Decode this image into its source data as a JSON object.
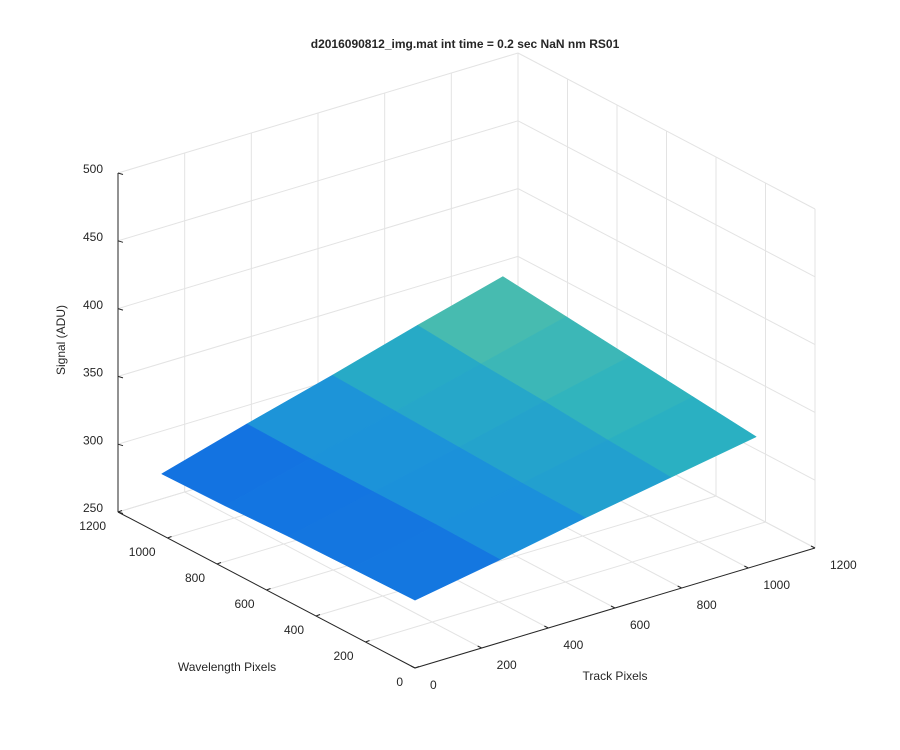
{
  "chart_data": {
    "type": "surface",
    "title": "d2016090812_img.mat int time = 0.2 sec  NaN nm RS01",
    "xlabel": "Track Pixels",
    "ylabel": "Wavelength Pixels",
    "zlabel": "Signal (ADU)",
    "xlim": [
      0,
      1200
    ],
    "ylim": [
      0,
      1200
    ],
    "zlim": [
      250,
      500
    ],
    "xticks": [
      0,
      200,
      400,
      600,
      800,
      1000,
      1200
    ],
    "yticks": [
      0,
      200,
      400,
      600,
      800,
      1000,
      1200
    ],
    "zticks": [
      250,
      300,
      350,
      400,
      450,
      500
    ],
    "x": [
      0,
      256,
      512,
      768,
      1024
    ],
    "y": [
      0,
      256,
      512,
      768,
      1024
    ],
    "z": [
      [
        300,
        311,
        323,
        334,
        345
      ],
      [
        299,
        312,
        324,
        337,
        350
      ],
      [
        298,
        312,
        326,
        341,
        355
      ],
      [
        296,
        312,
        328,
        344,
        360
      ],
      [
        295,
        313,
        330,
        348,
        365
      ]
    ],
    "colormap": [
      "#0b55e6",
      "#1a8fdc",
      "#2bb2c0",
      "#6fc79a"
    ],
    "clim": [
      290,
      370
    ],
    "grid": true
  }
}
